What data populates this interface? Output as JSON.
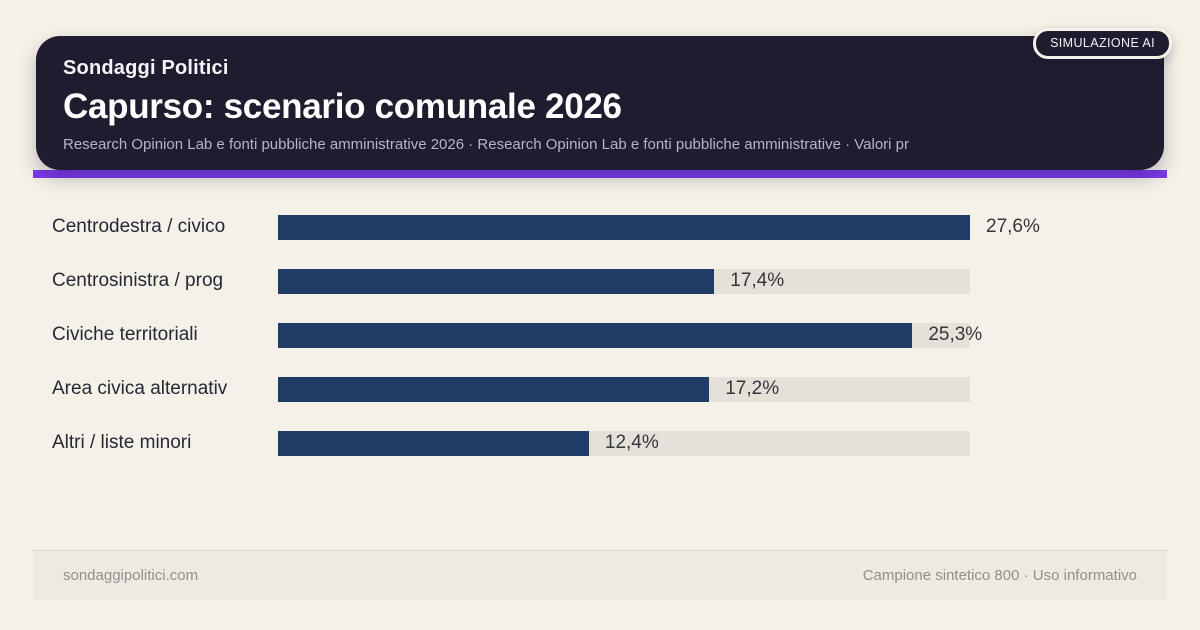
{
  "badge": {
    "label": "SIMULAZIONE AI"
  },
  "header": {
    "kicker": "Sondaggi Politici",
    "title": "Capurso: scenario comunale 2026",
    "subtitle": "Research Opinion Lab e fonti pubbliche amministrative 2026 · Research Opinion Lab e fonti pubbliche amministrative · Valori pr"
  },
  "chart_data": {
    "type": "bar",
    "orientation": "horizontal",
    "title": "Capurso: scenario comunale 2026",
    "categories": [
      "Centrodestra / civico",
      "Centrosinistra / prog",
      "Civiche territoriali",
      "Area civica alternativ",
      "Altri / liste minori"
    ],
    "values": [
      27.6,
      17.4,
      25.3,
      17.2,
      12.4
    ],
    "value_labels": [
      "27,6%",
      "17,4%",
      "25,3%",
      "17,2%",
      "12,4%"
    ],
    "xlim": [
      0,
      27.6
    ],
    "grid": false,
    "legend": false
  },
  "footer": {
    "left": "sondaggipolitici.com",
    "right": "Campione sintetico 800 · Uso informativo"
  },
  "colors": {
    "page_bg": "#f5f1e8",
    "header_bg": "#1f1c2f",
    "accent": "#7c3aed",
    "bar": "#1f3c66",
    "bar_track": "#e5e1d8",
    "label_text": "#242936",
    "subtitle_text": "#b3b6c7",
    "footer_text": "#8f8f8c"
  }
}
